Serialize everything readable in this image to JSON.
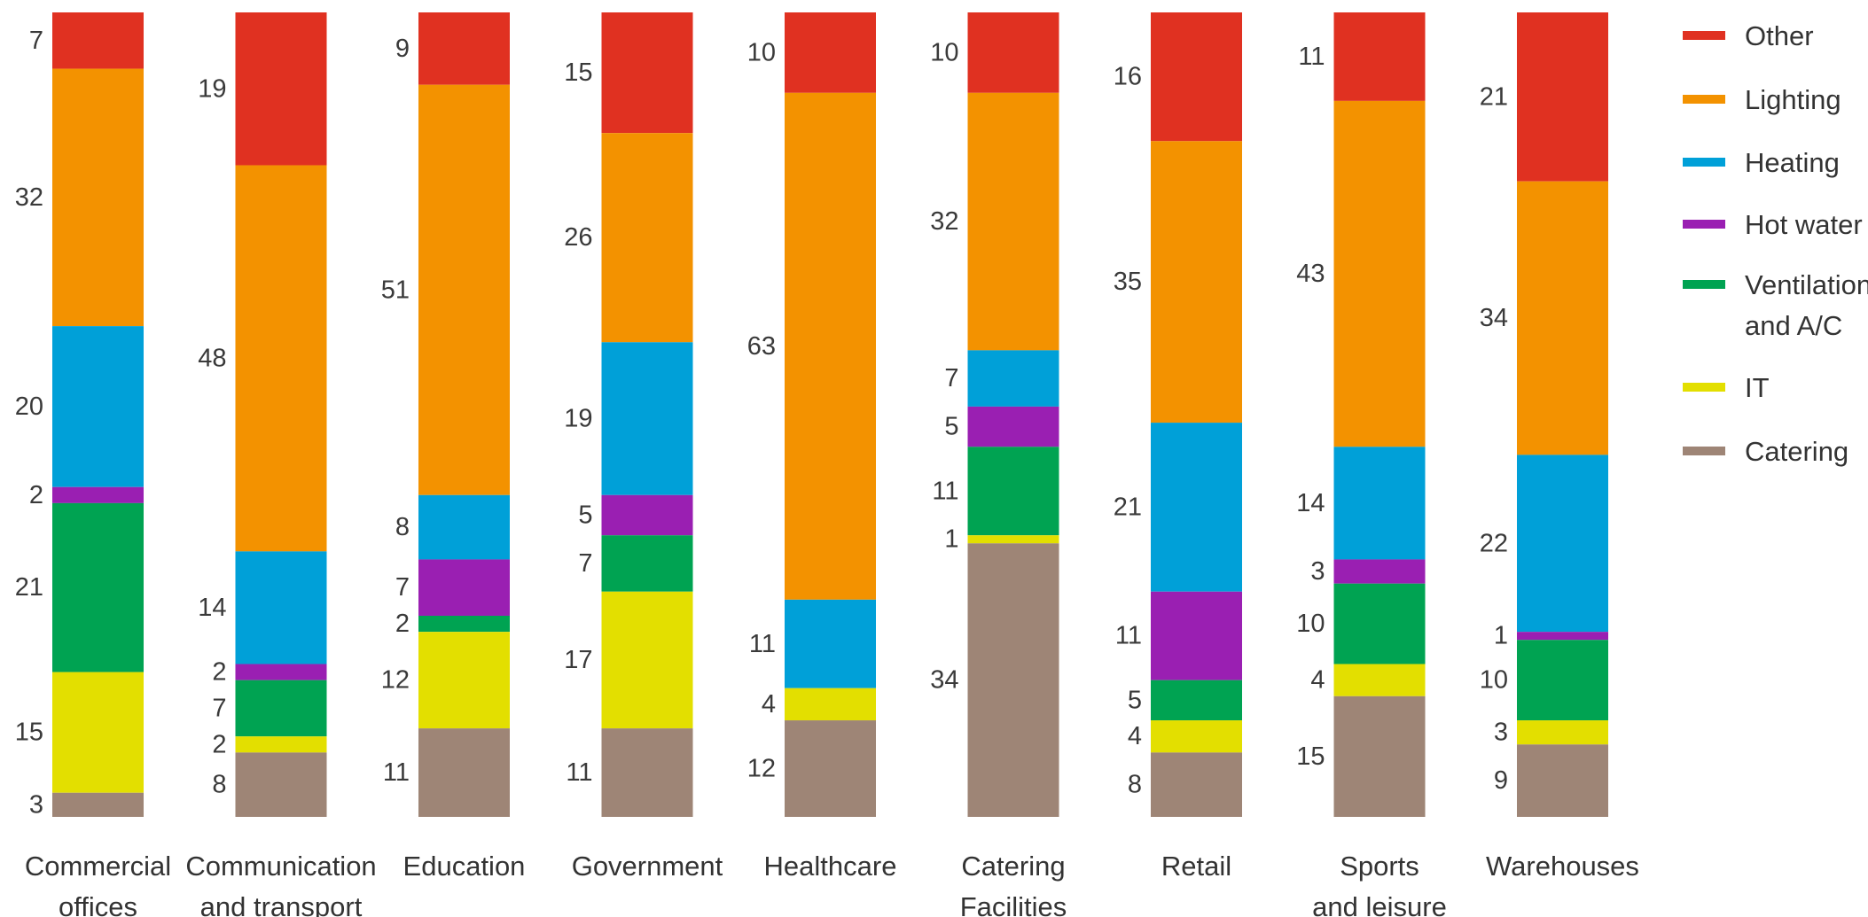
{
  "chart_data": {
    "type": "bar",
    "stacked": true,
    "orientation": "vertical",
    "normalized": true,
    "title": "",
    "xlabel": "",
    "ylabel": "",
    "grid": false,
    "legend_position": "right",
    "categories": [
      [
        "Commercial",
        "offices"
      ],
      [
        "Communication",
        "and transport"
      ],
      [
        "Education"
      ],
      [
        "Government"
      ],
      [
        "Healthcare"
      ],
      [
        "Catering",
        "Facilities"
      ],
      [
        "Retail"
      ],
      [
        "Sports",
        "and leisure"
      ],
      [
        "Warehouses"
      ]
    ],
    "series": [
      {
        "name": "Other",
        "color": "#e03121",
        "values": [
          7,
          19,
          9,
          15,
          10,
          10,
          16,
          11,
          21
        ]
      },
      {
        "name": "Lighting",
        "color": "#f39200",
        "values": [
          32,
          48,
          51,
          26,
          63,
          32,
          35,
          43,
          34
        ]
      },
      {
        "name": "Heating",
        "color": "#00a0d8",
        "values": [
          20,
          14,
          8,
          19,
          11,
          7,
          21,
          14,
          22
        ]
      },
      {
        "name": "Hot water",
        "color": "#9a1fb2",
        "values": [
          2,
          2,
          7,
          5,
          null,
          5,
          11,
          3,
          1
        ]
      },
      {
        "name": "Ventilation and A/C",
        "color": "#00a352",
        "values": [
          21,
          7,
          2,
          7,
          null,
          11,
          5,
          10,
          10
        ]
      },
      {
        "name": "IT",
        "color": "#e3df00",
        "values": [
          15,
          2,
          12,
          17,
          4,
          1,
          4,
          4,
          3
        ]
      },
      {
        "name": "Catering",
        "color": "#9e8576",
        "values": [
          3,
          8,
          11,
          11,
          12,
          34,
          8,
          15,
          9
        ]
      }
    ],
    "legend": [
      {
        "label": [
          "Other"
        ],
        "color": "#e03121"
      },
      {
        "label": [
          "Lighting"
        ],
        "color": "#f39200"
      },
      {
        "label": [
          "Heating"
        ],
        "color": "#00a0d8"
      },
      {
        "label": [
          "Hot water"
        ],
        "color": "#9a1fb2"
      },
      {
        "label": [
          "Ventilation",
          "and A/C"
        ],
        "color": "#00a352"
      },
      {
        "label": [
          "IT"
        ],
        "color": "#e3df00"
      },
      {
        "label": [
          "Catering"
        ],
        "color": "#9e8576"
      }
    ]
  }
}
